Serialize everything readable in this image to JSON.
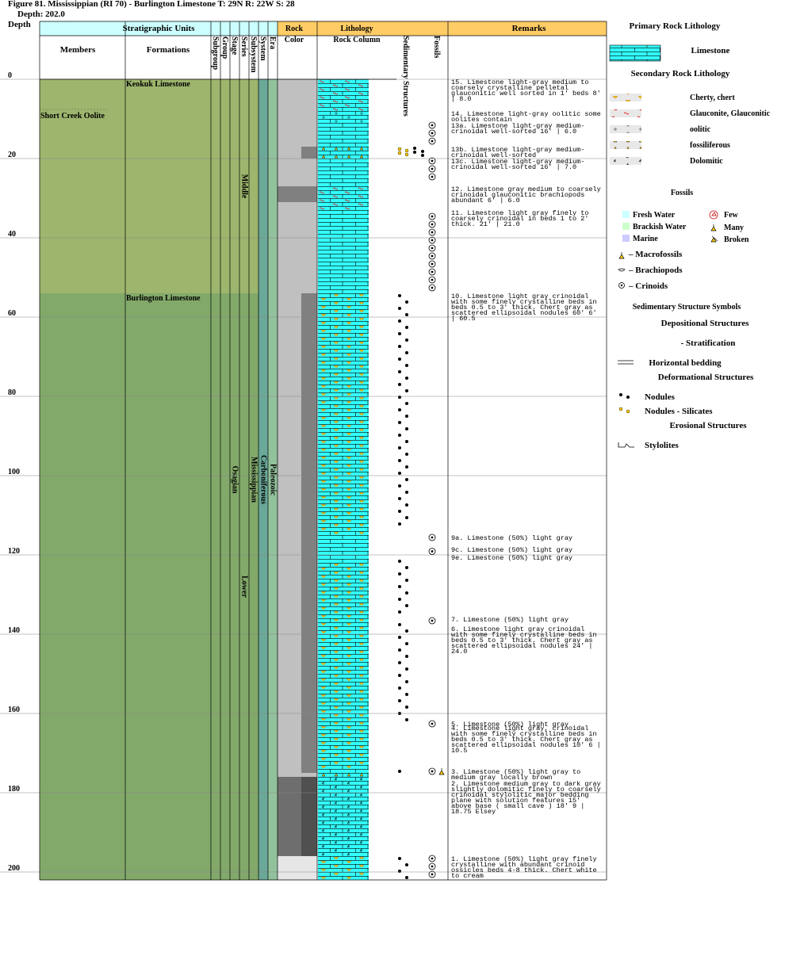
{
  "header": {
    "title": "Figure 81. Mississippian (RI 70) - Burlington Limestone T: 29N R: 22W S: 28",
    "depth": "Depth: 202.0"
  },
  "column_headers": {
    "depth": "Depth",
    "strat_units": "Stratigraphic Units",
    "members": "Members",
    "formations": "Formations",
    "ranks": [
      "Subgroup",
      "Group",
      "Stage",
      "Series",
      "Subsystem",
      "System",
      "Era"
    ],
    "rock": "Rock",
    "color": "Color",
    "lithology": "Lithology",
    "rock_column": "Rock Column",
    "sed_structures": "Sedimentary Structures",
    "fossils": "Fossils",
    "remarks": "Remarks"
  },
  "depth_ticks": [
    0,
    20,
    40,
    60,
    80,
    100,
    120,
    140,
    160,
    180,
    200
  ],
  "column_bottom": 202,
  "formations": [
    {
      "name": "Keokuk Limestone",
      "top": 0,
      "base": 54,
      "color": "#9db56d"
    },
    {
      "name": "Burlington Limestone",
      "top": 54,
      "base": 202,
      "color": "#82a96a"
    }
  ],
  "members": [
    {
      "name": "Short Creek Oolite",
      "top": 8
    }
  ],
  "units": [
    {
      "name": "Osagian",
      "column": 2,
      "top": 0,
      "base": 202
    },
    {
      "name": "Middle",
      "column": 3,
      "top": 0,
      "base": 54
    },
    {
      "name": "Lower",
      "column": 3,
      "top": 54,
      "base": 202
    },
    {
      "name": "Mississippian",
      "column": 4,
      "top": 0,
      "base": 202
    },
    {
      "name": "Carboniferous",
      "column": 5,
      "top": 0,
      "base": 202,
      "color": "#6aa898"
    },
    {
      "name": "Paleozoic",
      "column": 6,
      "top": 0,
      "base": 202,
      "color": "#92c29c"
    }
  ],
  "rock_color": [
    {
      "top": 0,
      "base": 202,
      "color": "#c0c0c0",
      "part": "full"
    },
    {
      "top": 17,
      "base": 20,
      "color": "#808080",
      "part": "right"
    },
    {
      "top": 27,
      "base": 31,
      "color": "#808080",
      "part": "full"
    },
    {
      "top": 54,
      "base": 175,
      "color": "#808080",
      "part": "right"
    },
    {
      "top": 176,
      "base": 196,
      "color": "#6e6e6e",
      "part": "full"
    },
    {
      "top": 176,
      "base": 196,
      "color": "#505050",
      "part": "right"
    },
    {
      "top": 196,
      "base": 202,
      "color": "#e6e6e6",
      "part": "full"
    }
  ],
  "lithology": [
    {
      "top": 0,
      "base": 8,
      "pattern": "glauconitic"
    },
    {
      "top": 8,
      "base": 11,
      "pattern": "oolitic"
    },
    {
      "top": 11,
      "base": 17,
      "pattern": "limestone"
    },
    {
      "top": 17,
      "base": 20,
      "pattern": "fossiliferous"
    },
    {
      "top": 20,
      "base": 27,
      "pattern": "limestone"
    },
    {
      "top": 27,
      "base": 33,
      "pattern": "glauconitic"
    },
    {
      "top": 33,
      "base": 54,
      "pattern": "limestone"
    },
    {
      "top": 54,
      "base": 115,
      "pattern": "cherty"
    },
    {
      "top": 115,
      "base": 122,
      "pattern": "limestone"
    },
    {
      "top": 122,
      "base": 174,
      "pattern": "cherty"
    },
    {
      "top": 174,
      "base": 176,
      "pattern": "fossiliferous"
    },
    {
      "top": 176,
      "base": 196,
      "pattern": "dolomitic"
    },
    {
      "top": 196,
      "base": 202,
      "pattern": "cherty"
    }
  ],
  "sed_structures": [
    {
      "top": 17,
      "base": 18,
      "symbol": "silicates"
    },
    {
      "top": 54,
      "base": 113,
      "symbol": "nodules"
    },
    {
      "top": 121,
      "base": 134,
      "symbol": "nodules"
    },
    {
      "top": 137,
      "base": 161,
      "symbol": "nodules"
    },
    {
      "top": 174,
      "base": 175,
      "symbol": "nodules"
    },
    {
      "top": 196,
      "base": 202,
      "symbol": "nodules"
    }
  ],
  "fossils": {
    "crinoids": [
      11,
      13,
      15,
      20,
      22,
      24,
      34,
      36,
      38,
      40,
      42,
      44,
      46,
      48,
      50,
      52,
      115,
      118.5,
      136,
      162,
      174,
      196,
      198,
      200
    ],
    "macrofossils": [
      174
    ]
  },
  "remarks": [
    {
      "depth": 0,
      "text": "15. Limestone light-gray medium to coarsely crystalline pelletal glauconitic well sorted in 1' beds 8' | 8.0"
    },
    {
      "depth": 8,
      "text": "14. Limestone light-gray oolitic some oolites contain"
    },
    {
      "depth": 11,
      "text": "13a. Limestone light-gray medium- crinoidal well-sorted 16' | 6.0"
    },
    {
      "depth": 17,
      "text": "13b. Limestone light-gray medium- crinoidal well-sorted"
    },
    {
      "depth": 20,
      "text": "13c. Limestone light-gray medium- crinoidal well-sorted 16' | 7.0"
    },
    {
      "depth": 27,
      "text": "12. Limestone gray medium to coarsely crinoidal glauconitic brachiopods abundant 6' | 6.0"
    },
    {
      "depth": 33,
      "text": "11. Limestone light gray finely to coarsely crinoidal in beds 1 to 2' thick. 21' | 21.0"
    },
    {
      "depth": 54,
      "text": "10. Limestone light gray crinoidal with some finely crystalline beds in beds 0.5 to 3' thick. Chert gray as scattered ellipsoidal nodules 60' 6' | 60.5"
    },
    {
      "depth": 115,
      "text": "9a. Limestone (50%) light gray"
    },
    {
      "depth": 118,
      "text": "9c. Limestone (50%) light gray"
    },
    {
      "depth": 120,
      "text": "9e. Limestone (50%) light gray"
    },
    {
      "depth": 135.5,
      "text": "7. Limestone (50%) light gray"
    },
    {
      "depth": 138,
      "text": "6. Limestone light gray crinoidal with some finely crystalline beds in beds 0.5 to 3' thick. Chert gray as scattered ellipsoidal nodules 24' | 24.0"
    },
    {
      "depth": 162,
      "text": "5. Limestone (50%) light gray"
    },
    {
      "depth": 163,
      "text": "4. Limestone light gray, crinoidal with some finely crystalline beds in beds 0.5 to 3' thick. Chert gray as scattered ellipsoidal nodules 10' 6 | 10.5"
    },
    {
      "depth": 174,
      "text": "3. Limestone (50%) light gray to medium gray locally brown"
    },
    {
      "depth": 177,
      "text": "2. Limestone medium gray to dark gray slightly dolomitic finely to coarsely crinoidal stylolitic major bedding plane with solution features 15' above base ( small cave ) 18' 9 | 18.75 Elsey"
    },
    {
      "depth": 196,
      "text": "1. Limestone (50%) light gray finely crystalline with abundant crinoid ossicles beds 4-8 thick. Chert white to cream"
    }
  ],
  "legend": {
    "primary_title": "Primary Rock Lithology",
    "primary": "Limestone",
    "secondary_title": "Secondary Rock Lithology",
    "secondary": [
      {
        "label": "Cherty, chert",
        "pattern": "cherty"
      },
      {
        "label": "Glauconite, Glauconitic",
        "pattern": "glauconitic"
      },
      {
        "label": "oolitic",
        "pattern": "oolitic"
      },
      {
        "label": "fossiliferous",
        "pattern": "fossiliferous"
      },
      {
        "label": "Dolomitic",
        "pattern": "dolomitic"
      }
    ],
    "fossils_title": "Fossils",
    "environments": [
      {
        "label": "Fresh Water",
        "color": "#ccffff"
      },
      {
        "label": "Brackish Water",
        "color": "#ccffcc"
      },
      {
        "label": "Marine",
        "color": "#ccccff"
      }
    ],
    "abundance": [
      "Few",
      "Many",
      "Broken"
    ],
    "fossil_symbols": [
      "– Macrofossils",
      "– Brachiopods",
      "– Crinoids"
    ],
    "sed_title": "Sedimentary Structure Symbols",
    "depositional": "Depositional Structures",
    "stratification": "- Stratification",
    "horizontal": "Horizontal bedding",
    "deformational": "Deformational Structures",
    "nodules": "Nodules",
    "silicates": "Nodules - Silicates",
    "erosional": "Erosional Structures",
    "stylolites": "Stylolites"
  }
}
